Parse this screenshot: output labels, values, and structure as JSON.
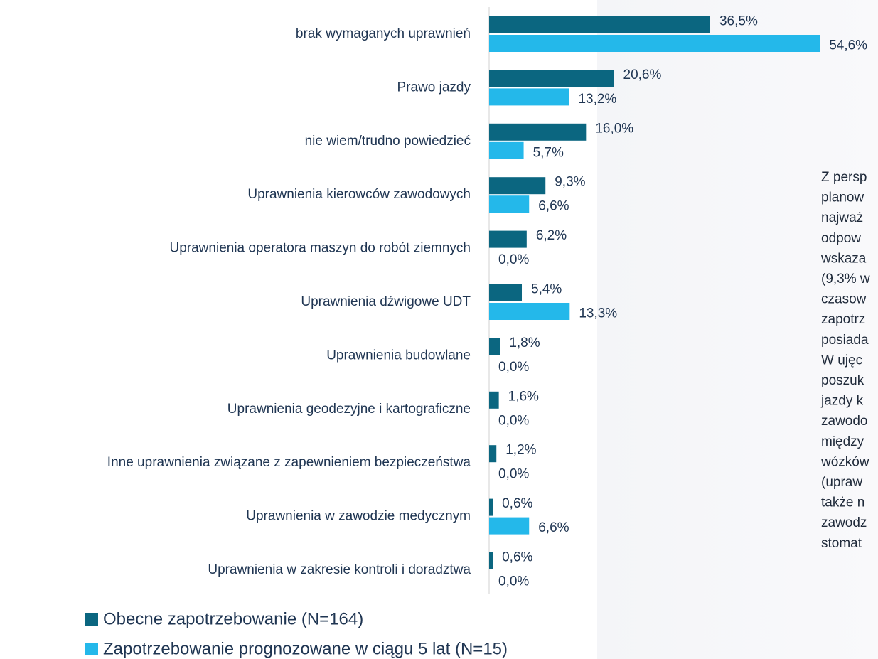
{
  "chart_data": {
    "type": "bar",
    "orientation": "horizontal",
    "categories": [
      "brak wymaganych uprawnień",
      "Prawo jazdy",
      "nie wiem/trudno powiedzieć",
      "Uprawnienia kierowców zawodowych",
      "Uprawnienia operatora maszyn do robót ziemnych",
      "Uprawnienia dźwigowe UDT",
      "Uprawnienia budowlane",
      "Uprawnienia geodezyjne i kartograficzne",
      "Inne uprawnienia związane z zapewnieniem bezpieczeństwa",
      "Uprawnienia w zawodzie medycznym",
      "Uprawnienia w zakresie kontroli i doradztwa"
    ],
    "series": [
      {
        "name": "Obecne zapotrzebowanie (N=164)",
        "color": "#0b6680",
        "values": [
          36.5,
          20.6,
          16.0,
          9.3,
          6.2,
          5.4,
          1.8,
          1.6,
          1.2,
          0.6,
          0.6
        ],
        "value_labels": [
          "36,5%",
          "20,6%",
          "16,0%",
          "9,3%",
          "6,2%",
          "5,4%",
          "1,8%",
          "1,6%",
          "1,2%",
          "0,6%",
          "0,6%"
        ]
      },
      {
        "name": "Zapotrzebowanie prognozowane w ciągu 5 lat (N=15)",
        "color": "#24b8ea",
        "values": [
          54.6,
          13.2,
          5.7,
          6.6,
          0.0,
          13.3,
          0.0,
          0.0,
          0.0,
          6.6,
          0.0
        ],
        "value_labels": [
          "54,6%",
          "13,2%",
          "5,7%",
          "6,6%",
          "0,0%",
          "13,3%",
          "0,0%",
          "0,0%",
          "0,0%",
          "6,6%",
          "0,0%"
        ]
      }
    ],
    "annotation_lines": [
      "Z persp",
      "planow",
      "najważ",
      "odpow",
      "wskaza",
      "(9,3% w",
      "czasow",
      "zapotrz",
      "posiada",
      "W ujęc",
      "poszuk",
      "jazdy k",
      "zawodo",
      "między",
      "wózków",
      "(upraw",
      "także n",
      "zawodz",
      "stomat"
    ]
  }
}
